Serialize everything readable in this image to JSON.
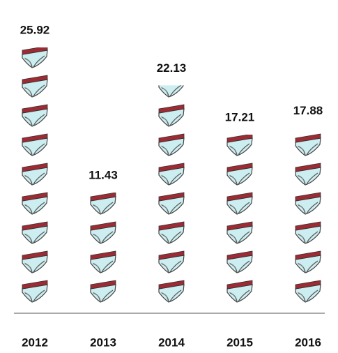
{
  "chart_data": {
    "type": "pictograph",
    "categories": [
      "2012",
      "2013",
      "2014",
      "2015",
      "2016"
    ],
    "values": [
      25.92,
      11.43,
      22.13,
      17.21,
      17.88
    ],
    "color": "#cdeef0",
    "band_color": "#9e2b33"
  }
}
